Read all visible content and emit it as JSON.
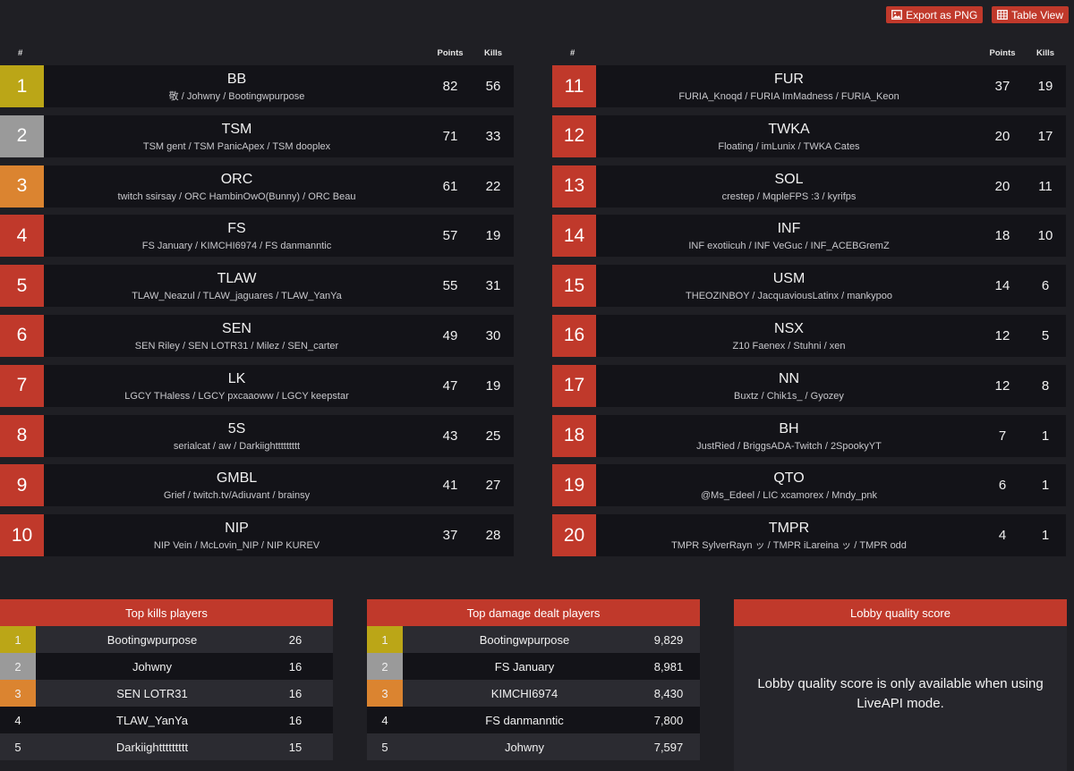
{
  "toolbar": {
    "export_label": "Export as PNG",
    "export_icon": "image-icon",
    "table_label": "Table View",
    "table_icon": "table-icon",
    "accent": "#c0392b"
  },
  "standings_header": {
    "hash": "#",
    "points": "Points",
    "kills": "Kills"
  },
  "rank_colors": {
    "gold": "#bba617",
    "silver": "#9a9a9a",
    "bronze": "#db8430",
    "default": "#c0392b"
  },
  "standings_left": [
    {
      "rank": "1",
      "team": "BB",
      "players": "敬 / Johwny / Bootingwpurpose",
      "points": "82",
      "kills": "56"
    },
    {
      "rank": "2",
      "team": "TSM",
      "players": "TSM gent / TSM PanicApex / TSM dooplex",
      "points": "71",
      "kills": "33"
    },
    {
      "rank": "3",
      "team": "ORC",
      "players": "twitch ssirsay / ORC HambinOwO(Bunny) / ORC Beau",
      "points": "61",
      "kills": "22"
    },
    {
      "rank": "4",
      "team": "FS",
      "players": "FS January / KIMCHI6974 / FS danmanntic",
      "points": "57",
      "kills": "19"
    },
    {
      "rank": "5",
      "team": "TLAW",
      "players": "TLAW_Neazul / TLAW_jaguares / TLAW_YanYa",
      "points": "55",
      "kills": "31"
    },
    {
      "rank": "6",
      "team": "SEN",
      "players": "SEN Riley / SEN LOTR31 / Milez / SEN_carter",
      "points": "49",
      "kills": "30"
    },
    {
      "rank": "7",
      "team": "LK",
      "players": "LGCY THaless / LGCY pxcaaoww / LGCY keepstar",
      "points": "47",
      "kills": "19"
    },
    {
      "rank": "8",
      "team": "5S",
      "players": "serialcat / aw / Darkiighttttttttt",
      "points": "43",
      "kills": "25"
    },
    {
      "rank": "9",
      "team": "GMBL",
      "players": "Grief / twitch.tv/Adiuvant / brainsy",
      "points": "41",
      "kills": "27"
    },
    {
      "rank": "10",
      "team": "NIP",
      "players": "NIP Vein / McLovin_NIP / NIP KUREV",
      "points": "37",
      "kills": "28"
    }
  ],
  "standings_right": [
    {
      "rank": "11",
      "team": "FUR",
      "players": "FURIA_Knoqd / FURIA ImMadness / FURIA_Keon",
      "points": "37",
      "kills": "19"
    },
    {
      "rank": "12",
      "team": "TWKA",
      "players": "Floating / imLunix / TWKA Cates",
      "points": "20",
      "kills": "17"
    },
    {
      "rank": "13",
      "team": "SOL",
      "players": "crestep / MqpleFPS :3 / kyrifps",
      "points": "20",
      "kills": "11"
    },
    {
      "rank": "14",
      "team": "INF",
      "players": "INF exotiicuh / INF VeGuc / INF_ACEBGremZ",
      "points": "18",
      "kills": "10"
    },
    {
      "rank": "15",
      "team": "USM",
      "players": "THEOZINBOY / JacquaviousLatinx / mankypoo",
      "points": "14",
      "kills": "6"
    },
    {
      "rank": "16",
      "team": "NSX",
      "players": "Z10 Faenex / Stuhni / xen",
      "points": "12",
      "kills": "5"
    },
    {
      "rank": "17",
      "team": "NN",
      "players": "Buxtz / Chik1s_ / Gyozey",
      "points": "12",
      "kills": "8"
    },
    {
      "rank": "18",
      "team": "BH",
      "players": "JustRied / BriggsADA-Twitch / 2SpookyYT",
      "points": "7",
      "kills": "1"
    },
    {
      "rank": "19",
      "team": "QTO",
      "players": "@Ms_Edeel / LIC xcamorex / Mndy_pnk",
      "points": "6",
      "kills": "1"
    },
    {
      "rank": "20",
      "team": "TMPR",
      "players": "TMPR SylverRayn ッ / TMPR iLareina ッ / TMPR odd",
      "points": "4",
      "kills": "1"
    }
  ],
  "top_kills": {
    "title": "Top kills players",
    "rows": [
      {
        "rank": "1",
        "name": "Bootingwpurpose",
        "value": "26"
      },
      {
        "rank": "2",
        "name": "Johwny",
        "value": "16"
      },
      {
        "rank": "3",
        "name": "SEN LOTR31",
        "value": "16"
      },
      {
        "rank": "4",
        "name": "TLAW_YanYa",
        "value": "16"
      },
      {
        "rank": "5",
        "name": "Darkiighttttttttt",
        "value": "15"
      }
    ]
  },
  "top_damage": {
    "title": "Top damage dealt players",
    "rows": [
      {
        "rank": "1",
        "name": "Bootingwpurpose",
        "value": "9,829"
      },
      {
        "rank": "2",
        "name": "FS January",
        "value": "8,981"
      },
      {
        "rank": "3",
        "name": "KIMCHI6974",
        "value": "8,430"
      },
      {
        "rank": "4",
        "name": "FS danmanntic",
        "value": "7,800"
      },
      {
        "rank": "5",
        "name": "Johwny",
        "value": "7,597"
      }
    ]
  },
  "lobby_quality": {
    "title": "Lobby quality score",
    "message": "Lobby quality score is only available when using LiveAPI mode."
  }
}
